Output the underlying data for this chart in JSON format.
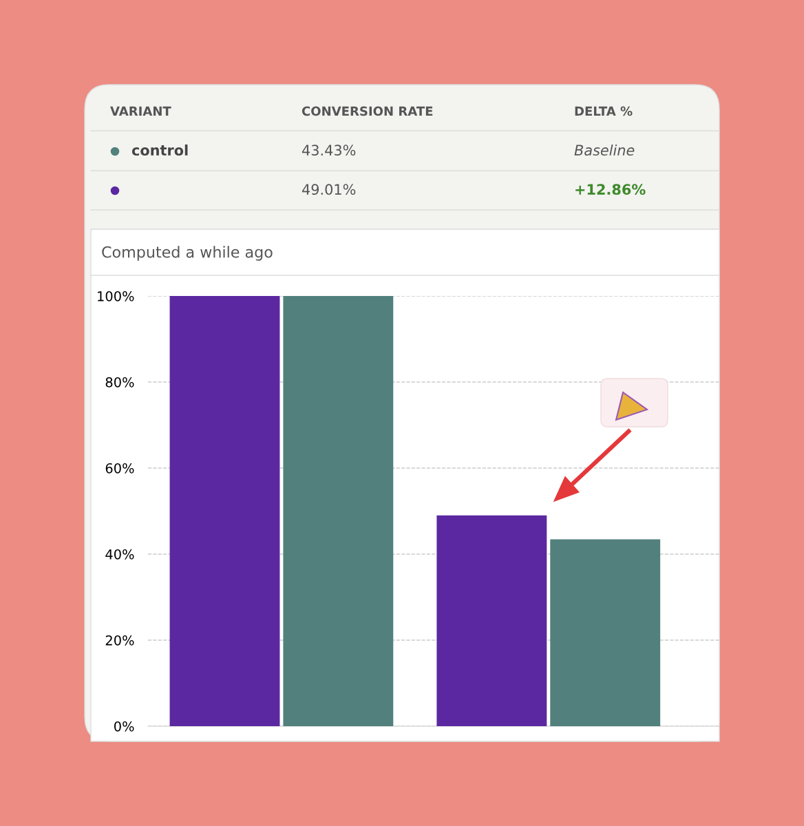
{
  "chart_data": {
    "type": "bar",
    "subtitle": "Computed a while ago",
    "categories": [
      null,
      null
    ],
    "series": [
      {
        "color": "#5b28a1",
        "values": [
          100,
          49.01
        ]
      },
      {
        "name": "control",
        "color": "#52807d",
        "values": [
          100,
          43.43
        ]
      }
    ],
    "ylim": [
      0,
      100
    ],
    "yticks": [
      {
        "value": 0,
        "label": "0%"
      },
      {
        "value": 20,
        "label": "20%"
      },
      {
        "value": 40,
        "label": "40%"
      },
      {
        "value": 60,
        "label": "60%"
      },
      {
        "value": 80,
        "label": "80%"
      },
      {
        "value": 100,
        "label": "100%"
      }
    ],
    "grid": "y",
    "legend": "top left",
    "annotations": [
      "VARIANT",
      "CONVERSION RATE",
      "DELTA %",
      "43.43%",
      "Baseline",
      "49.01%",
      "+12.86%"
    ]
  }
}
